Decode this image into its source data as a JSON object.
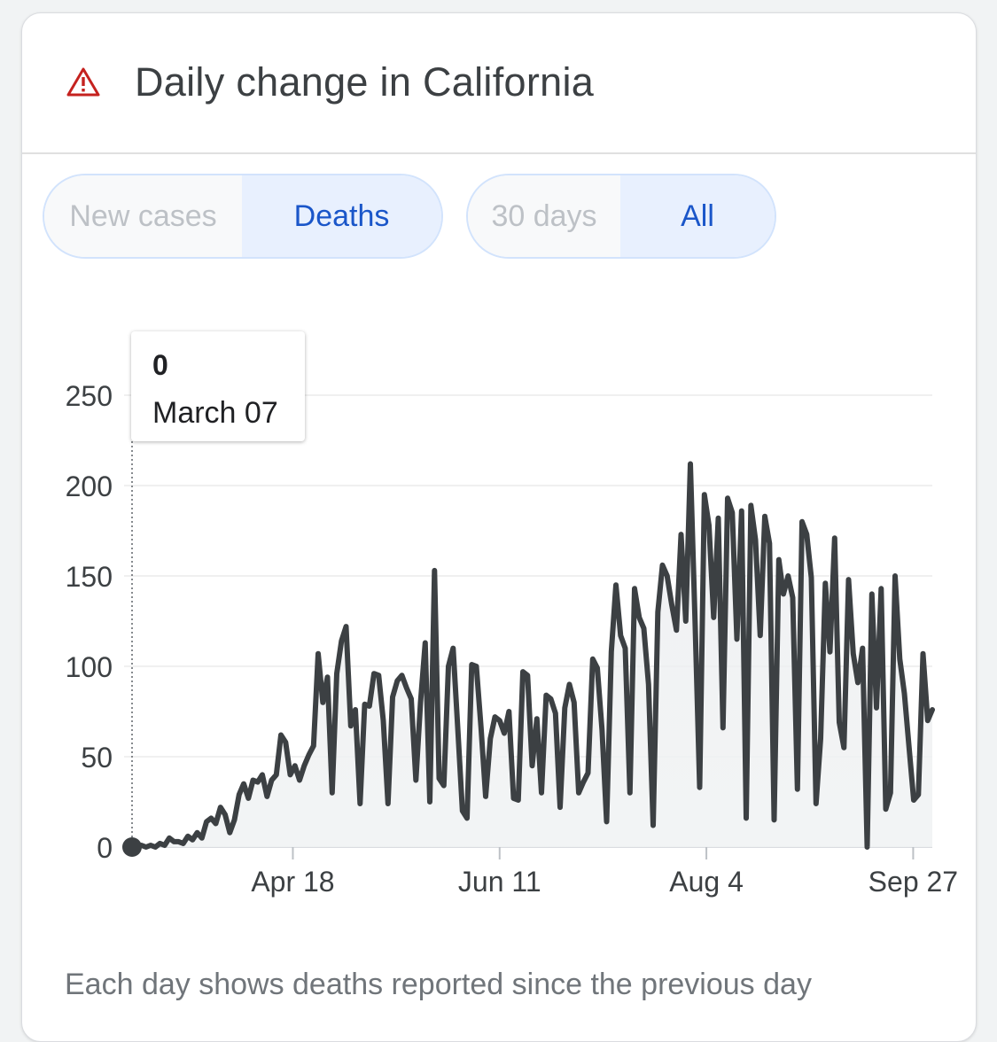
{
  "header": {
    "title": "Daily change in California",
    "icon": "warning-icon"
  },
  "metric_toggle": {
    "options": [
      "New cases",
      "Deaths"
    ],
    "selected": "Deaths"
  },
  "range_toggle": {
    "options": [
      "30 days",
      "All"
    ],
    "selected": "All"
  },
  "tooltip": {
    "value": "0",
    "date": "March 07"
  },
  "footnote": "Each day shows deaths reported since the previous day",
  "colors": {
    "line": "#3c4043",
    "selected": "#1a56c9",
    "selected_bg": "#e8f0fe",
    "unselected": "#bdc1c6",
    "warning": "#c5221f"
  },
  "chart_data": {
    "type": "area",
    "ylim": [
      0,
      250
    ],
    "yticks": [
      0,
      50,
      100,
      150,
      200,
      250
    ],
    "xtick_labels": [
      "Apr 18",
      "Jun 11",
      "Aug 4",
      "Sep 27"
    ],
    "xtick_dates": [
      "2020-04-18",
      "2020-06-11",
      "2020-08-04",
      "2020-09-27"
    ],
    "x_start": "2020-03-07",
    "x_end": "2020-10-02",
    "grid": true,
    "series": [
      {
        "values": [
          0,
          0,
          1,
          0,
          1,
          0,
          2,
          1,
          5,
          3,
          3,
          2,
          6,
          4,
          8,
          5,
          14,
          16,
          13,
          22,
          18,
          8,
          15,
          29,
          35,
          27,
          37,
          36,
          40,
          28,
          37,
          40,
          62,
          58,
          40,
          45,
          37,
          45,
          51,
          56,
          107,
          80,
          94,
          30,
          96,
          114,
          122,
          67,
          76,
          24,
          79,
          78,
          96,
          95,
          70,
          24,
          83,
          92,
          95,
          88,
          82,
          37,
          80,
          113,
          25,
          153,
          38,
          34,
          100,
          110,
          66,
          20,
          16,
          101,
          100,
          66,
          28,
          60,
          72,
          70,
          63,
          75,
          27,
          26,
          97,
          95,
          45,
          71,
          30,
          84,
          82,
          74,
          22,
          77,
          90,
          80,
          30,
          36,
          41,
          104,
          99,
          65,
          14,
          108,
          145,
          117,
          110,
          30,
          143,
          127,
          121,
          90,
          12,
          130,
          156,
          150,
          134,
          120,
          173,
          125,
          212,
          125,
          33,
          195,
          178,
          127,
          182,
          66,
          193,
          185,
          115,
          186,
          16,
          189,
          170,
          117,
          183,
          168,
          15,
          159,
          140,
          150,
          138,
          32,
          180,
          173,
          149,
          24,
          60,
          146,
          108,
          171,
          69,
          55,
          148,
          107,
          91,
          110,
          0,
          140,
          77,
          143,
          21,
          30,
          150,
          104,
          85,
          55,
          26,
          29,
          107,
          70,
          76
        ]
      }
    ]
  }
}
